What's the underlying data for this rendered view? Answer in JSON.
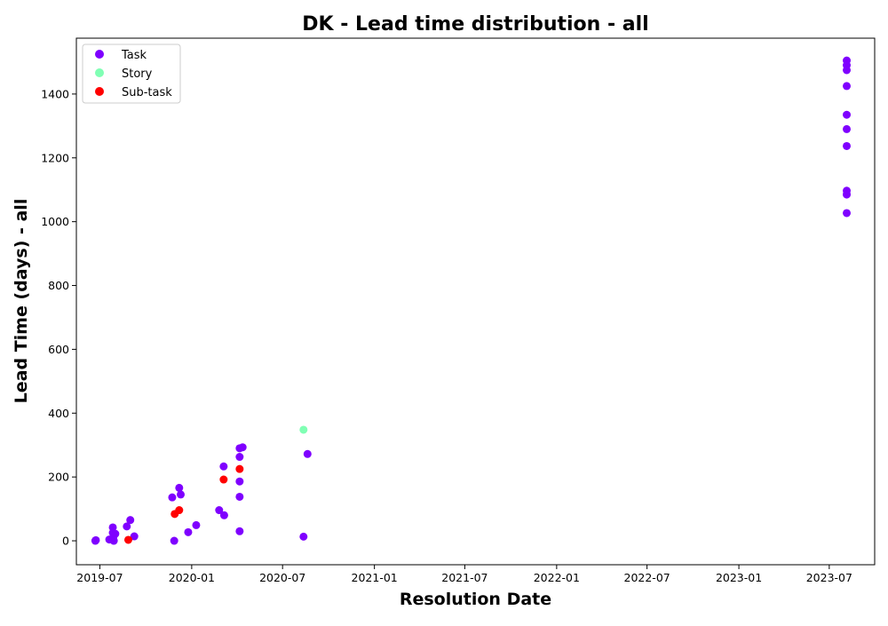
{
  "chart_data": {
    "type": "scatter",
    "title": "DK - Lead time distribution - all",
    "xlabel": "Resolution Date",
    "ylabel": "Lead Time (days) - all",
    "x_ticks": [
      "2019-07",
      "2020-01",
      "2020-07",
      "2021-01",
      "2021-07",
      "2022-01",
      "2022-07",
      "2023-01",
      "2023-07"
    ],
    "y_ticks": [
      0,
      200,
      400,
      600,
      800,
      1000,
      1200,
      1400
    ],
    "xlim": [
      "2019-05-15",
      "2023-09-30"
    ],
    "ylim": [
      -75,
      1575
    ],
    "legend_position": "top-left",
    "grid": false,
    "series": [
      {
        "name": "Task",
        "color": "#7f00ff",
        "points": [
          {
            "x": "2019-06-22",
            "y": 0
          },
          {
            "x": "2019-06-23",
            "y": 2
          },
          {
            "x": "2019-07-20",
            "y": 4
          },
          {
            "x": "2019-07-27",
            "y": 42
          },
          {
            "x": "2019-07-27",
            "y": 25
          },
          {
            "x": "2019-07-28",
            "y": 10
          },
          {
            "x": "2019-07-29",
            "y": 0
          },
          {
            "x": "2019-08-01",
            "y": 22
          },
          {
            "x": "2019-08-24",
            "y": 45
          },
          {
            "x": "2019-08-31",
            "y": 65
          },
          {
            "x": "2019-09-08",
            "y": 14
          },
          {
            "x": "2019-11-23",
            "y": 136
          },
          {
            "x": "2019-11-27",
            "y": 0
          },
          {
            "x": "2019-12-07",
            "y": 166
          },
          {
            "x": "2019-12-10",
            "y": 145
          },
          {
            "x": "2019-12-25",
            "y": 27
          },
          {
            "x": "2020-01-10",
            "y": 49
          },
          {
            "x": "2020-02-25",
            "y": 96
          },
          {
            "x": "2020-03-05",
            "y": 233
          },
          {
            "x": "2020-03-06",
            "y": 80
          },
          {
            "x": "2020-04-06",
            "y": 290
          },
          {
            "x": "2020-04-06",
            "y": 263
          },
          {
            "x": "2020-04-06",
            "y": 186
          },
          {
            "x": "2020-04-06",
            "y": 138
          },
          {
            "x": "2020-04-06",
            "y": 30
          },
          {
            "x": "2020-04-12",
            "y": 293
          },
          {
            "x": "2020-08-12",
            "y": 13
          },
          {
            "x": "2020-08-20",
            "y": 272
          },
          {
            "x": "2023-08-05",
            "y": 1505
          },
          {
            "x": "2023-08-05",
            "y": 1490
          },
          {
            "x": "2023-08-05",
            "y": 1475
          },
          {
            "x": "2023-08-05",
            "y": 1425
          },
          {
            "x": "2023-08-05",
            "y": 1335
          },
          {
            "x": "2023-08-05",
            "y": 1290
          },
          {
            "x": "2023-08-05",
            "y": 1237
          },
          {
            "x": "2023-08-05",
            "y": 1097
          },
          {
            "x": "2023-08-05",
            "y": 1085
          },
          {
            "x": "2023-08-05",
            "y": 1027
          }
        ]
      },
      {
        "name": "Story",
        "color": "#80ffb4",
        "points": [
          {
            "x": "2020-08-12",
            "y": 348
          }
        ]
      },
      {
        "name": "Sub-task",
        "color": "#ff0000",
        "points": [
          {
            "x": "2019-08-27",
            "y": 3
          },
          {
            "x": "2019-11-28",
            "y": 84
          },
          {
            "x": "2019-12-07",
            "y": 96
          },
          {
            "x": "2020-03-05",
            "y": 192
          },
          {
            "x": "2020-04-06",
            "y": 225
          }
        ]
      }
    ]
  }
}
